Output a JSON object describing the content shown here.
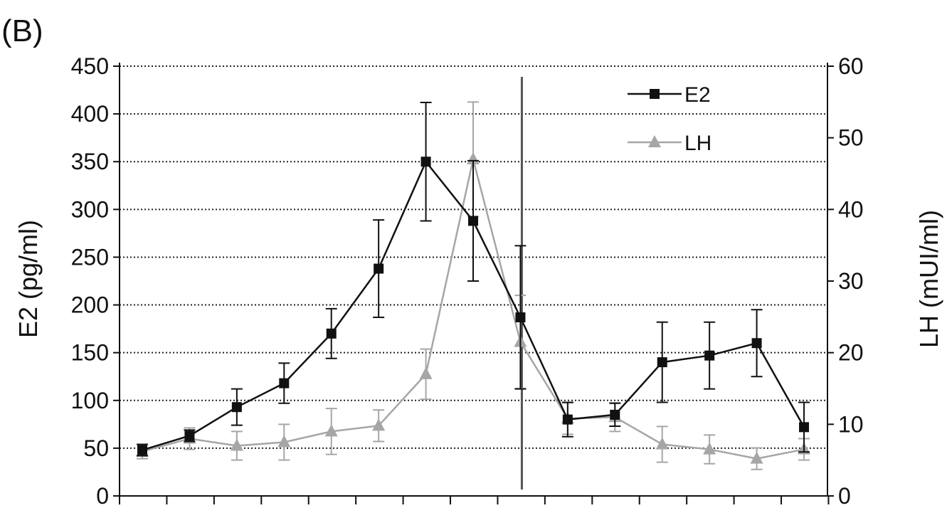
{
  "chart_data": {
    "type": "line",
    "panel_label": "(B)",
    "ylabel": "E2 (pg/ml)",
    "y2label": "LH (mUI/ml)",
    "ylim": [
      0,
      450
    ],
    "y2lim": [
      0,
      60
    ],
    "yticks": [
      "0",
      "50",
      "100",
      "150",
      "200",
      "250",
      "300",
      "350",
      "400",
      "450"
    ],
    "y2ticks": [
      "0",
      "10",
      "20",
      "30",
      "40",
      "50",
      "60"
    ],
    "grid": true,
    "legend_position": "top-right",
    "x_count": 15,
    "divider_after_index": 8,
    "series": [
      {
        "name": "E2",
        "axis": "left",
        "color": "#111111",
        "marker": "square",
        "x": [
          0,
          1,
          2,
          3,
          4,
          5,
          6,
          7,
          8,
          9,
          10,
          11,
          12,
          13,
          14
        ],
        "values": [
          48,
          63,
          93,
          118,
          170,
          238,
          350,
          288,
          187,
          80,
          85,
          140,
          147,
          160,
          72
        ],
        "err": [
          6,
          6,
          19,
          21,
          26,
          51,
          62,
          63,
          75,
          18,
          12,
          42,
          35,
          35,
          26
        ]
      },
      {
        "name": "LH",
        "axis": "right",
        "color": "#a6a6a6",
        "marker": "triangle",
        "x": [
          0,
          1,
          2,
          3,
          4,
          5,
          6,
          7,
          8,
          9,
          10,
          11,
          12,
          13,
          14
        ],
        "values": [
          6.2,
          8.0,
          7.0,
          7.5,
          9.0,
          9.8,
          17.0,
          47.0,
          21.5,
          10.8,
          11.0,
          7.2,
          6.5,
          5.2,
          6.5
        ],
        "err": [
          1.0,
          1.5,
          2.0,
          2.5,
          3.2,
          2.2,
          3.5,
          8.0,
          6.5,
          2.2,
          2.0,
          2.5,
          2.0,
          1.5,
          1.5
        ]
      }
    ]
  }
}
